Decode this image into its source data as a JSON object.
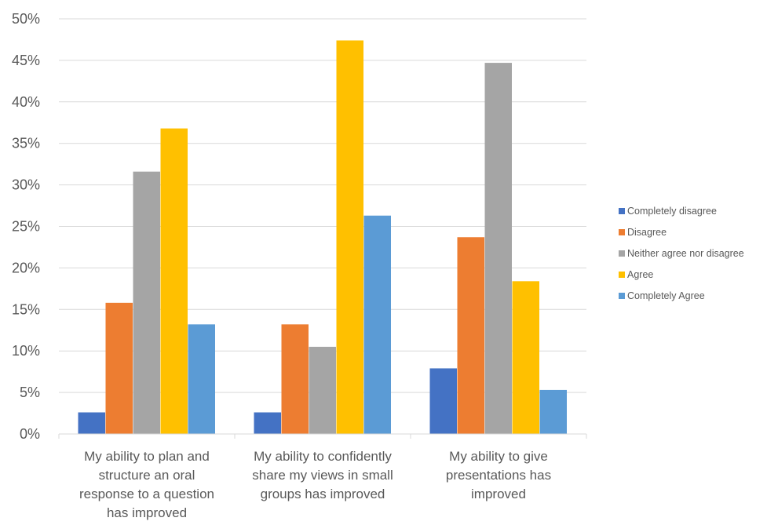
{
  "chart_data": {
    "type": "bar",
    "categories": [
      [
        "My ability to plan and",
        "structure an oral",
        "response to a question",
        "has improved"
      ],
      [
        "My ability to confidently",
        "share my views in small",
        "groups has improved"
      ],
      [
        "My ability to give",
        "presentations has",
        "improved"
      ]
    ],
    "series": [
      {
        "name": "Completely disagree",
        "color": "#4472C4",
        "values": [
          2.6,
          2.6,
          7.9
        ]
      },
      {
        "name": "Disagree",
        "color": "#ED7D31",
        "values": [
          15.8,
          13.2,
          23.7
        ]
      },
      {
        "name": "Neither agree nor disagree",
        "color": "#A5A5A5",
        "values": [
          31.6,
          10.5,
          44.7
        ]
      },
      {
        "name": "Agree",
        "color": "#FFC000",
        "values": [
          36.8,
          47.4,
          18.4
        ]
      },
      {
        "name": "Completely Agree",
        "color": "#5B9BD5",
        "values": [
          13.2,
          26.3,
          5.3
        ]
      }
    ],
    "yticks": [
      "0%",
      "5%",
      "10%",
      "15%",
      "20%",
      "25%",
      "30%",
      "35%",
      "40%",
      "45%",
      "50%"
    ],
    "ylim": [
      0,
      50
    ],
    "grid": true,
    "legend_position": "right",
    "xlabel": "",
    "ylabel": "",
    "title": ""
  }
}
